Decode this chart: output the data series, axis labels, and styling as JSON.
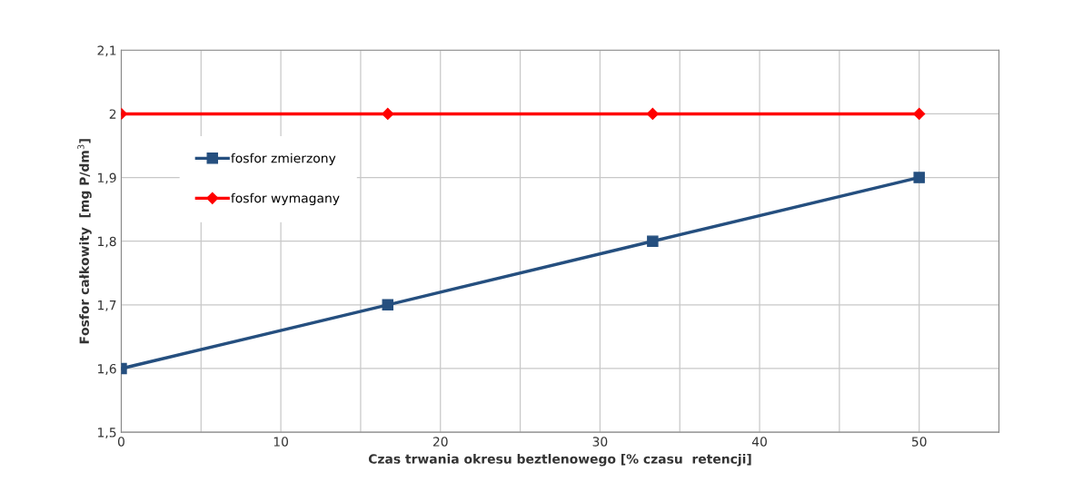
{
  "chart_data": {
    "type": "line",
    "xlabel": "Czas trwania okresu beztlenowego [% czasu  retencji]",
    "ylabel": "Fosfor całkowity  [mg P/dm$^{3}$]",
    "x": [
      0,
      16.7,
      33.3,
      50
    ],
    "series": [
      {
        "name": "fosfor zmierzony",
        "color": "#254f7f",
        "marker": "square",
        "values": [
          1.6,
          1.7,
          1.8,
          1.9
        ]
      },
      {
        "name": "fosfor wymagany",
        "color": "#ff0000",
        "marker": "diamond",
        "values": [
          2,
          2,
          2,
          2
        ]
      }
    ],
    "xlim": [
      0,
      55
    ],
    "xticks": [
      0,
      {
        "value": 5,
        "label": null
      },
      10,
      {
        "value": 15,
        "label": null
      },
      20,
      {
        "value": 25,
        "label": null
      },
      30,
      {
        "value": 35,
        "label": null
      },
      40,
      {
        "value": 45,
        "label": null
      },
      50,
      {
        "value": 55,
        "label": null
      }
    ],
    "ylim": [
      1.5,
      2.1
    ],
    "yticks": [
      {
        "value": 1.5,
        "label": "1,5"
      },
      {
        "value": 1.6,
        "label": "1,6"
      },
      {
        "value": 1.7,
        "label": "1,7"
      },
      {
        "value": 1.8,
        "label": "1,8"
      },
      {
        "value": 1.9,
        "label": "1,9"
      },
      {
        "value": 2,
        "label": "2"
      },
      {
        "value": 2.1,
        "label": "2,1"
      }
    ],
    "grid": true,
    "legend": "top left",
    "line_style": "solid"
  }
}
